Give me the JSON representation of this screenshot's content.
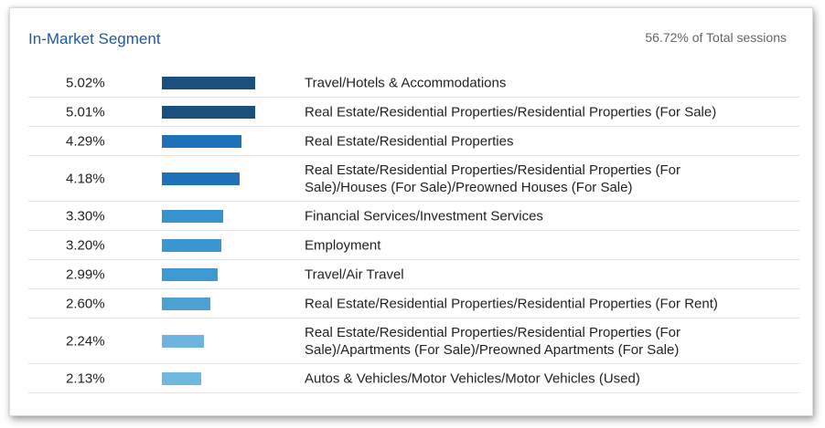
{
  "header": {
    "title": "In-Market Segment",
    "summary": "56.72% of Total sessions"
  },
  "chart_data": {
    "type": "bar",
    "orientation": "horizontal",
    "title": "In-Market Segment",
    "categories": [
      "Travel/Hotels & Accommodations",
      "Real Estate/Residential Properties/Residential Properties (For Sale)",
      "Real Estate/Residential Properties",
      "Real Estate/Residential Properties/Residential Properties (For Sale)/Houses (For Sale)/Preowned Houses (For Sale)",
      "Financial Services/Investment Services",
      "Employment",
      "Travel/Air Travel",
      "Real Estate/Residential Properties/Residential Properties (For Rent)",
      "Real Estate/Residential Properties/Residential Properties (For Sale)/Apartments (For Sale)/Preowned Apartments (For Sale)",
      "Autos & Vehicles/Motor Vehicles/Motor Vehicles (Used)"
    ],
    "values": [
      5.02,
      5.01,
      4.29,
      4.18,
      3.3,
      3.2,
      2.99,
      2.6,
      2.24,
      2.13
    ],
    "value_labels": [
      "5.02%",
      "5.01%",
      "4.29%",
      "4.18%",
      "3.30%",
      "3.20%",
      "2.99%",
      "2.60%",
      "2.24%",
      "2.13%"
    ],
    "xlim": [
      0,
      5.02
    ],
    "colors": [
      "#1a4f7e",
      "#1a4f7e",
      "#1f72b8",
      "#1f72b8",
      "#3793cf",
      "#3a97d1",
      "#3d99d2",
      "#4ba0d4",
      "#6db5df",
      "#70b7df"
    ],
    "grid": false
  }
}
